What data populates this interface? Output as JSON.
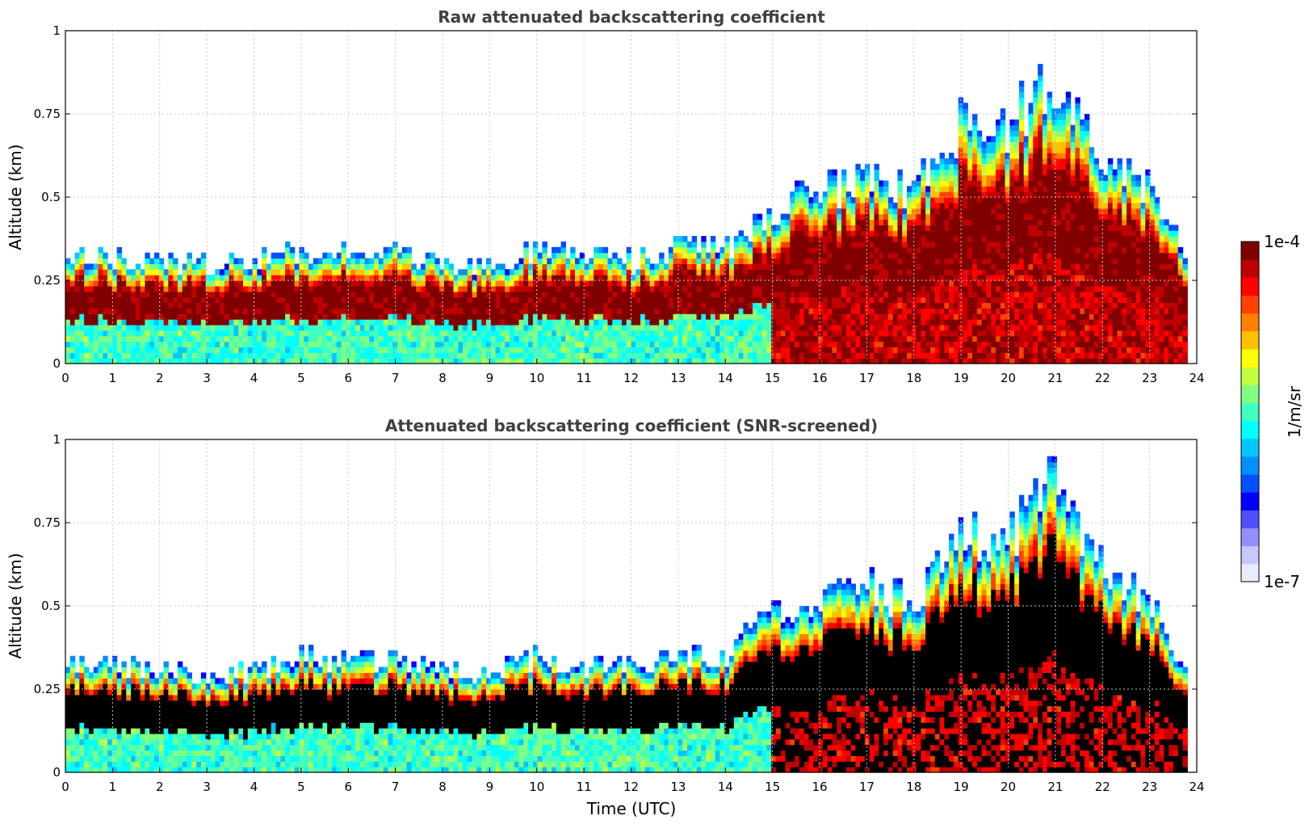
{
  "figure": {
    "ylabel": "Altitude (km)",
    "xlabel": "Time (UTC)"
  },
  "colorbar": {
    "label": "1/m/sr",
    "max_label": "1e-4",
    "min_label": "1e-7",
    "colors": [
      "#ececff",
      "#c8c8ff",
      "#9090ff",
      "#5050ff",
      "#0000ff",
      "#0050ff",
      "#0090ff",
      "#00c8ff",
      "#00ffff",
      "#40ffc0",
      "#80ff80",
      "#c0ff40",
      "#ffff00",
      "#ffc000",
      "#ff8000",
      "#ff4000",
      "#ff0000",
      "#c00000",
      "#800000"
    ]
  },
  "chart_data": [
    {
      "type": "heatmap",
      "title": "Raw attenuated backscattering coefficient",
      "xlim": [
        0,
        24
      ],
      "ylim": [
        0,
        1
      ],
      "xticks": [
        "0",
        "1",
        "2",
        "3",
        "4",
        "5",
        "6",
        "7",
        "8",
        "9",
        "10",
        "11",
        "12",
        "13",
        "14",
        "15",
        "16",
        "17",
        "18",
        "19",
        "20",
        "21",
        "22",
        "23",
        "24"
      ],
      "yticks": [
        "0",
        "0.25",
        "0.5",
        "0.75",
        "1"
      ],
      "grid": true,
      "scale": "log",
      "clim": [
        1e-07,
        0.0001
      ],
      "boundary_layer_top_km": {
        "time_h": [
          0,
          1,
          2,
          3,
          4,
          5,
          6,
          7,
          8,
          9,
          10,
          11,
          12,
          13,
          14,
          15,
          16,
          17,
          18,
          19,
          20,
          21,
          22,
          23,
          23.8
        ],
        "top_km": [
          0.33,
          0.31,
          0.3,
          0.29,
          0.3,
          0.33,
          0.32,
          0.33,
          0.3,
          0.28,
          0.34,
          0.32,
          0.3,
          0.35,
          0.34,
          0.45,
          0.5,
          0.55,
          0.5,
          0.7,
          0.7,
          0.85,
          0.6,
          0.5,
          0.3
        ]
      }
    },
    {
      "type": "heatmap",
      "title": "Attenuated backscattering coefficient (SNR-screened)",
      "xlim": [
        0,
        24
      ],
      "ylim": [
        0,
        1
      ],
      "xticks": [
        "0",
        "1",
        "2",
        "3",
        "4",
        "5",
        "6",
        "7",
        "8",
        "9",
        "10",
        "11",
        "12",
        "13",
        "14",
        "15",
        "16",
        "17",
        "18",
        "19",
        "20",
        "21",
        "22",
        "23",
        "24"
      ],
      "yticks": [
        "0",
        "0.25",
        "0.5",
        "0.75",
        "1"
      ],
      "grid": true,
      "scale": "log",
      "clim": [
        1e-07,
        0.0001
      ],
      "boundary_layer_top_km": {
        "time_h": [
          0,
          1,
          2,
          3,
          4,
          5,
          6,
          7,
          8,
          9,
          10,
          11,
          12,
          13,
          14,
          15,
          16,
          17,
          18,
          19,
          20,
          21,
          22,
          23,
          23.8
        ],
        "top_km": [
          0.33,
          0.31,
          0.3,
          0.29,
          0.3,
          0.33,
          0.32,
          0.33,
          0.3,
          0.28,
          0.34,
          0.32,
          0.3,
          0.35,
          0.34,
          0.45,
          0.5,
          0.55,
          0.5,
          0.7,
          0.7,
          0.85,
          0.6,
          0.5,
          0.3
        ]
      }
    }
  ]
}
